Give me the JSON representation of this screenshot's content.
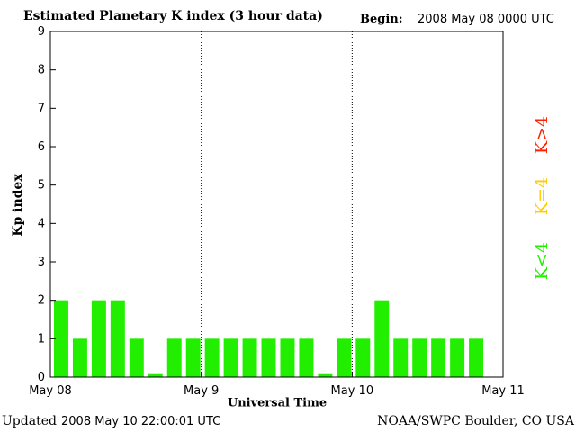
{
  "header": {
    "title": "Estimated Planetary K index (3 hour data)",
    "begin_label": "Begin:",
    "begin_value": "2008 May 08 0000 UTC"
  },
  "footer": {
    "updated_label": "Updated",
    "updated_value": "2008 May 10 22:00:01 UTC",
    "credit": "NOAA/SWPC Boulder, CO USA"
  },
  "legend": {
    "high": {
      "label": "K>4",
      "color": "#ff2200"
    },
    "equal": {
      "label": "K=4",
      "color": "#ffcc00"
    },
    "low": {
      "label": "K<4",
      "color": "#22ee00"
    }
  },
  "chart_data": {
    "type": "bar",
    "xlabel": "Universal Time",
    "ylabel": "Kp index",
    "ylim": [
      0,
      9
    ],
    "yticks": [
      "0",
      "1",
      "2",
      "3",
      "4",
      "5",
      "6",
      "7",
      "8",
      "9"
    ],
    "xticks": [
      "May 08",
      "May 9",
      "May 10",
      "May 11"
    ],
    "interval_hours": 3,
    "values": [
      2,
      1,
      2,
      2,
      1,
      0.1,
      1,
      1,
      1,
      1,
      1,
      1,
      1,
      1,
      0.1,
      1,
      1,
      2,
      1,
      1,
      1,
      1,
      1
    ],
    "bar_color": "#22ee00",
    "day_separators": true
  }
}
